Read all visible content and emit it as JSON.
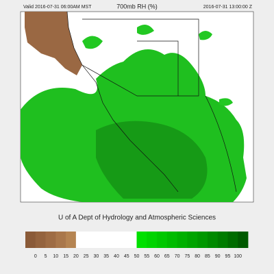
{
  "header": {
    "valid": "Valid 2016-07-31 06:00AM MST",
    "title": "700mb RH (%)",
    "time": "2016-07-31 13:00:00 Z"
  },
  "footer": "U of A Dept of Hydrology and Atmospheric Sciences",
  "colorbar": {
    "labels": [
      0,
      5,
      10,
      15,
      20,
      25,
      30,
      35,
      40,
      45,
      50,
      55,
      60,
      65,
      70,
      75,
      80,
      85,
      90,
      95,
      100
    ],
    "colors": [
      "#8a5a38",
      "#94633e",
      "#9e6c44",
      "#a9774b",
      "#b58452",
      "#ffffff",
      "#ffffff",
      "#ffffff",
      "#ffffff",
      "#ffffff",
      "#ffffff",
      "#00e000",
      "#00d400",
      "#00c800",
      "#00bc00",
      "#00b000",
      "#00a400",
      "#009800",
      "#008a00",
      "#007c00",
      "#006c00",
      "#005a00"
    ]
  }
}
